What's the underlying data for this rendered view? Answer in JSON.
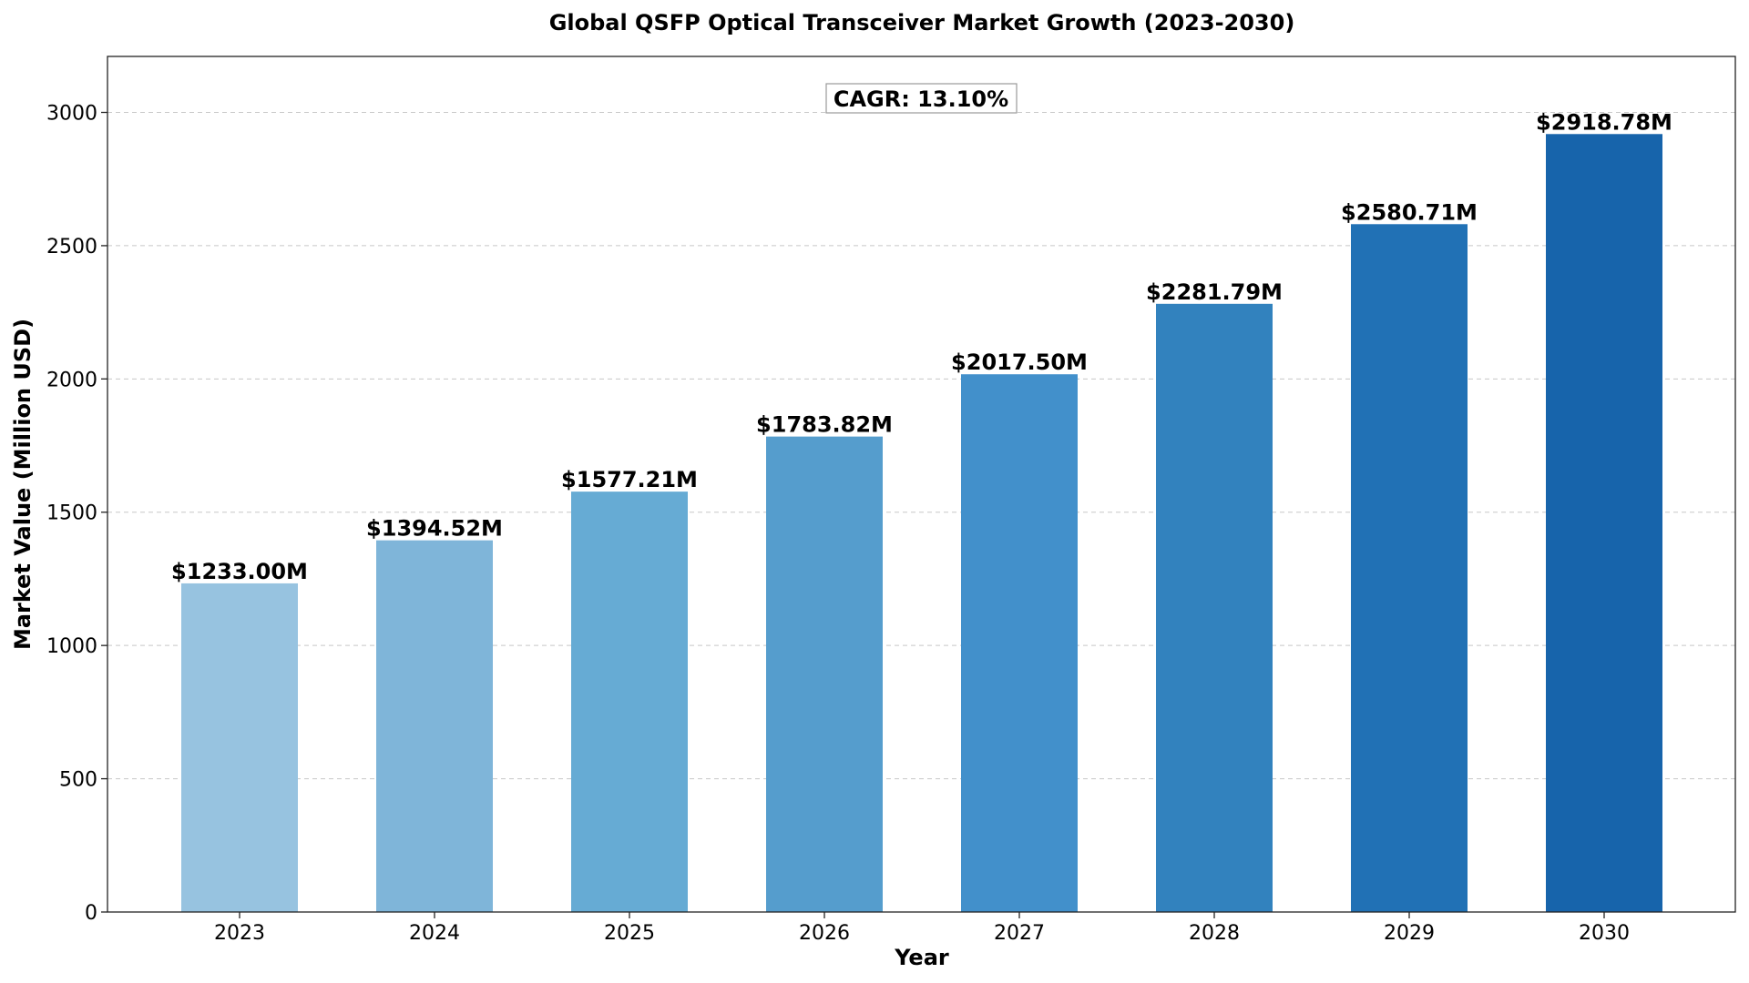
{
  "chart_data": {
    "type": "bar",
    "title": "Global QSFP Optical Transceiver Market Growth (2023-2030)",
    "xlabel": "Year",
    "ylabel": "Market Value (Million USD)",
    "categories": [
      "2023",
      "2024",
      "2025",
      "2026",
      "2027",
      "2028",
      "2029",
      "2030"
    ],
    "values": [
      1233.0,
      1394.52,
      1577.21,
      1783.82,
      2017.5,
      2281.79,
      2580.71,
      2918.78
    ],
    "data_labels": [
      "$1233.00M",
      "$1394.52M",
      "$1577.21M",
      "$1783.82M",
      "$2017.50M",
      "$2281.79M",
      "$2580.71M",
      "$2918.78M"
    ],
    "bar_colors": [
      "#97c3e0",
      "#7fb5d9",
      "#66abd4",
      "#559dcd",
      "#4290cb",
      "#3282be",
      "#2171b5",
      "#1764ab"
    ],
    "ylim": [
      0,
      3210
    ],
    "yticks": [
      0,
      500,
      1000,
      1500,
      2000,
      2500,
      3000
    ],
    "grid": "y-dashed",
    "annotation": "CAGR: 13.10%"
  }
}
